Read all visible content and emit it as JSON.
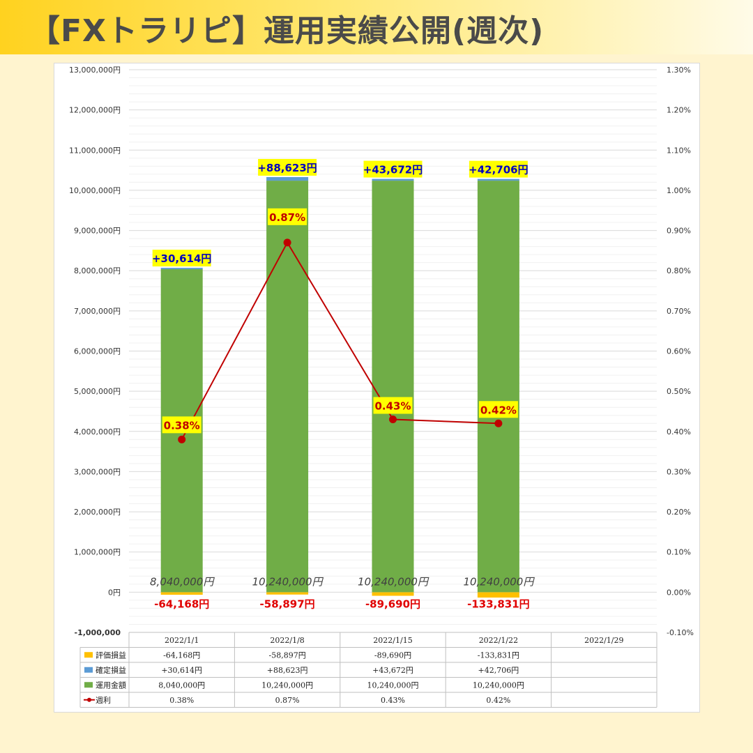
{
  "header": {
    "title": "【FXトラリピ】運用実績公開(週次)"
  },
  "chart_data": {
    "type": "bar",
    "categories": [
      "2022/1/1",
      "2022/1/8",
      "2022/1/15",
      "2022/1/22",
      "2022/1/29"
    ],
    "series": [
      {
        "name": "評価損益",
        "values": [
          -64168,
          -58897,
          -89690,
          -133831,
          null
        ],
        "color": "#ffc000",
        "labels": [
          "-64,168円",
          "-58,897円",
          "-89,690円",
          "-133,831円",
          ""
        ]
      },
      {
        "name": "確定損益",
        "values": [
          30614,
          88623,
          43672,
          42706,
          null
        ],
        "color": "#5b9bd5",
        "labels": [
          "+30,614円",
          "+88,623円",
          "+43,672円",
          "+42,706円",
          ""
        ]
      },
      {
        "name": "運用金額",
        "values": [
          8040000,
          10240000,
          10240000,
          10240000,
          null
        ],
        "color": "#70ad47",
        "labels": [
          "8,040,000円",
          "10,240,000円",
          "10,240,000円",
          "10,240,000円",
          ""
        ]
      },
      {
        "name": "週利",
        "type": "line",
        "axis": "right",
        "values": [
          0.38,
          0.87,
          0.43,
          0.42,
          null
        ],
        "color": "#c00000",
        "labels": [
          "0.38%",
          "0.87%",
          "0.43%",
          "0.42%",
          ""
        ]
      }
    ],
    "ylim": [
      -1000000,
      13000000
    ],
    "y2lim": [
      -0.1,
      1.3
    ],
    "y_ticks": [
      "-1,000,000",
      "0円",
      "1,000,000円",
      "2,000,000円",
      "3,000,000円",
      "4,000,000円",
      "5,000,000円",
      "6,000,000円",
      "7,000,000円",
      "8,000,000円",
      "9,000,000円",
      "10,000,000円",
      "11,000,000円",
      "12,000,000円",
      "13,000,000円"
    ],
    "y2_ticks": [
      "-0.10%",
      "0.00%",
      "0.10%",
      "0.20%",
      "0.30%",
      "0.40%",
      "0.50%",
      "0.60%",
      "0.70%",
      "0.80%",
      "0.90%",
      "1.00%",
      "1.10%",
      "1.20%",
      "1.30%"
    ],
    "grid": true,
    "legend": "data-table-bottom"
  }
}
